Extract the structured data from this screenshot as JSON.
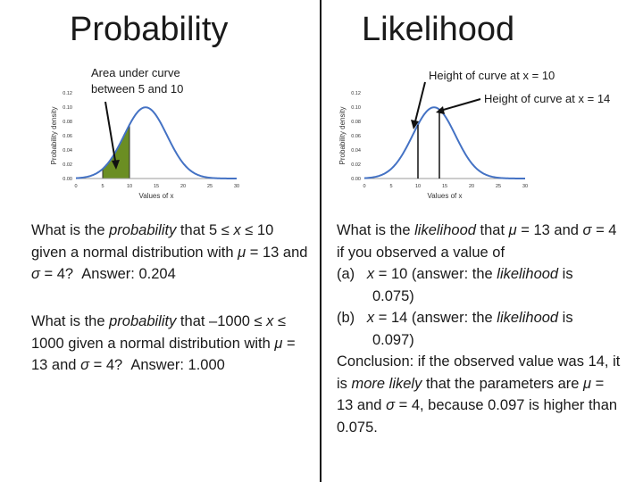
{
  "left": {
    "title": "Probability",
    "annotation_line1": "Area under curve",
    "annotation_line2": "between 5 and 10",
    "question1_html": "What is the <i>probability</i> that 5 ≤ <i>x</i> ≤ 10 given a normal distribution with <i>μ</i> = 13 and <i>σ</i> = 4?&nbsp; Answer: 0.204",
    "question2_html": "What is the <i>probability</i> that –1000 ≤ <i>x</i> ≤ 1000 given a normal distribution with <i>μ</i> = 13 and <i>σ</i> = 4?&nbsp; Answer: 1.000"
  },
  "right": {
    "title": "Likelihood",
    "annotation1": "Height of curve at x = 10",
    "annotation2": "Height of curve at x = 14",
    "intro_html": "What is the <i>likelihood</i> that <i>μ</i> = 13 and <i>σ</i> = 4 if you observed a value of",
    "item_a_html": "(a)&nbsp;&nbsp; <i>x</i> = 10 (answer: the <i>likelihood</i> is",
    "item_a_cont": "0.075)",
    "item_b_html": "(b)&nbsp;&nbsp; <i>x</i> = 14 (answer: the <i>likelihood</i> is",
    "item_b_cont": "0.097)",
    "conclusion_html": "Conclusion: if the observed value was 14, it is <i>more likely</i> that the parameters are <i>μ</i> = 13 and <i>σ</i> = 4, because 0.097 is higher than 0.075."
  },
  "chart_data": [
    {
      "type": "line",
      "distribution": "normal",
      "mu": 13,
      "sigma": 4,
      "xlabel": "Values of x",
      "ylabel": "Probability density",
      "xticks": [
        "0",
        "5",
        "10",
        "15",
        "20",
        "25",
        "30"
      ],
      "yticks": [
        "0.00",
        "0.02",
        "0.04",
        "0.06",
        "0.08",
        "0.10",
        "0.12"
      ],
      "xlim": [
        0,
        30
      ],
      "ylim": [
        0,
        0.12
      ],
      "shaded_region": [
        5,
        10
      ],
      "shade_color": "#6b8e23"
    },
    {
      "type": "line",
      "distribution": "normal",
      "mu": 13,
      "sigma": 4,
      "xlabel": "Values of x",
      "ylabel": "Probability density",
      "xticks": [
        "0",
        "5",
        "10",
        "15",
        "20",
        "25",
        "30"
      ],
      "yticks": [
        "0.00",
        "0.02",
        "0.04",
        "0.06",
        "0.08",
        "0.10",
        "0.12"
      ],
      "xlim": [
        0,
        30
      ],
      "ylim": [
        0,
        0.12
      ],
      "vertical_lines": [
        10,
        14
      ]
    }
  ],
  "colors": {
    "curve": "#4472c4",
    "shade": "#6b8e23",
    "axis": "#999999"
  }
}
